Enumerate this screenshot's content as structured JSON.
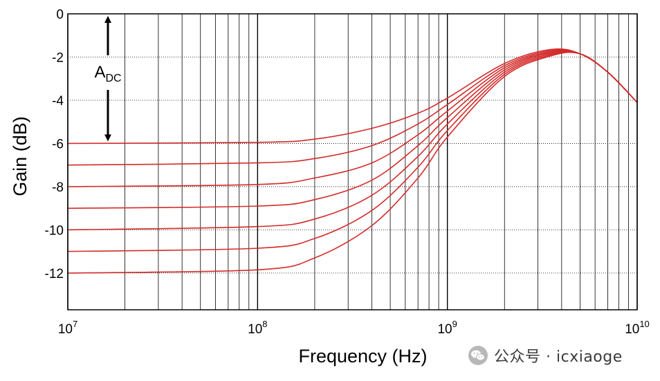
{
  "chart_data": {
    "type": "line",
    "xlabel": "Frequency (Hz)",
    "ylabel": "Gain (dB)",
    "x_scale": "log",
    "xlim": [
      10000000,
      10000000000
    ],
    "ylim": [
      -13.7,
      0
    ],
    "x_ticks": [
      {
        "base": "10",
        "exp": "7"
      },
      {
        "base": "10",
        "exp": "8"
      },
      {
        "base": "10",
        "exp": "9"
      },
      {
        "base": "10",
        "exp": "10"
      }
    ],
    "y_ticks": [
      0,
      -2,
      -4,
      -6,
      -8,
      -10,
      -12
    ],
    "grid": true,
    "line_color": "#d42a2a",
    "annotation": {
      "text": "A",
      "subscript": "DC",
      "from_y": 0,
      "to_y": -6
    },
    "series": [
      {
        "x": [
          10000000,
          100000000,
          200000000,
          400000000,
          700000000,
          1000000000,
          2000000000,
          3500000000,
          5000000000,
          7000000000,
          10000000000
        ],
        "y": [
          -6.0,
          -5.95,
          -5.8,
          -5.3,
          -4.6,
          -3.9,
          -2.3,
          -1.65,
          -1.85,
          -2.7,
          -4.1
        ]
      },
      {
        "x": [
          10000000,
          100000000,
          200000000,
          400000000,
          700000000,
          1000000000,
          2000000000,
          3500000000,
          5000000000,
          7000000000,
          10000000000
        ],
        "y": [
          -7.0,
          -6.9,
          -6.7,
          -6.1,
          -5.1,
          -4.2,
          -2.4,
          -1.7,
          -1.85,
          -2.7,
          -4.1
        ]
      },
      {
        "x": [
          10000000,
          100000000,
          200000000,
          400000000,
          700000000,
          1000000000,
          2000000000,
          3500000000,
          5000000000,
          7000000000,
          10000000000
        ],
        "y": [
          -8.0,
          -7.9,
          -7.6,
          -6.9,
          -5.6,
          -4.5,
          -2.5,
          -1.75,
          -1.85,
          -2.7,
          -4.1
        ]
      },
      {
        "x": [
          10000000,
          100000000,
          200000000,
          400000000,
          700000000,
          1000000000,
          2000000000,
          3500000000,
          5000000000,
          7000000000,
          10000000000
        ],
        "y": [
          -9.0,
          -8.9,
          -8.6,
          -7.7,
          -6.1,
          -4.8,
          -2.6,
          -1.8,
          -1.85,
          -2.7,
          -4.1
        ]
      },
      {
        "x": [
          10000000,
          100000000,
          200000000,
          400000000,
          700000000,
          1000000000,
          2000000000,
          3500000000,
          5000000000,
          7000000000,
          10000000000
        ],
        "y": [
          -10.0,
          -9.85,
          -9.5,
          -8.4,
          -6.6,
          -5.1,
          -2.7,
          -1.85,
          -1.85,
          -2.7,
          -4.1
        ]
      },
      {
        "x": [
          10000000,
          100000000,
          200000000,
          400000000,
          700000000,
          1000000000,
          2000000000,
          3500000000,
          5000000000,
          7000000000,
          10000000000
        ],
        "y": [
          -11.0,
          -10.85,
          -10.4,
          -9.1,
          -7.1,
          -5.4,
          -2.8,
          -1.9,
          -1.85,
          -2.7,
          -4.1
        ]
      },
      {
        "x": [
          10000000,
          100000000,
          200000000,
          400000000,
          700000000,
          1000000000,
          2000000000,
          3500000000,
          5000000000,
          7000000000,
          10000000000
        ],
        "y": [
          -12.0,
          -11.85,
          -11.3,
          -9.8,
          -7.6,
          -5.7,
          -2.9,
          -1.95,
          -1.85,
          -2.7,
          -4.1
        ]
      }
    ]
  },
  "watermark": {
    "text": "公众号 · icxiaoge",
    "icon": "wechat-icon"
  }
}
